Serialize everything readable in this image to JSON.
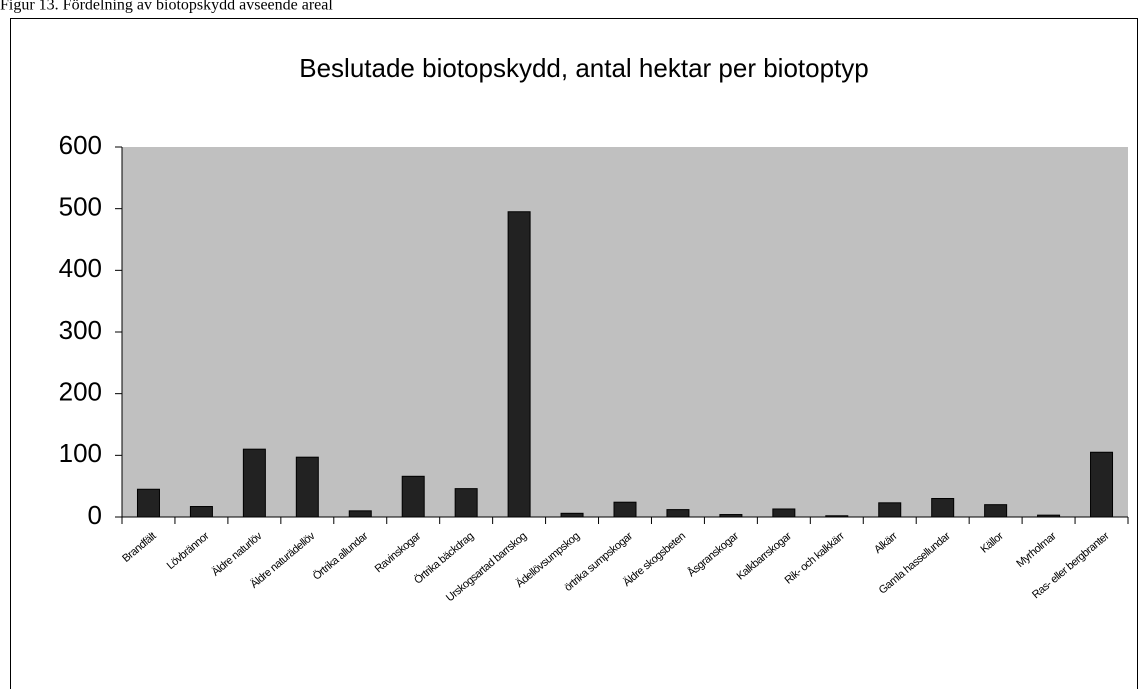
{
  "caption": "Figur 13. Fördelning av biotopskydd avseende areal",
  "chart_data": {
    "type": "bar",
    "title": "Beslutade biotopskydd, antal hektar per biotoptyp",
    "categories": [
      "Brandfält",
      "Lövbrännor",
      "Äldre naturlöv",
      "Äldre naturädellöv",
      "Örtrika allundar",
      "Ravinskogar",
      "Örtrika bäckdrag",
      "Urskogsartad barrskog",
      "Ädellövsumpskog",
      "örtrika sumpskogar",
      "Äldre skogsbeten",
      "Åsgranskogar",
      "Kalkbarrskogar",
      "Rik- och kalkkärr",
      "Alkärr",
      "Gamla hassellundar",
      "Källor",
      "Myrholmar",
      "Ras- eller bergbranter"
    ],
    "values": [
      45,
      17,
      110,
      97,
      10,
      66,
      46,
      495,
      6,
      24,
      12,
      4,
      13,
      2,
      23,
      30,
      20,
      3,
      105
    ],
    "color": "#222222",
    "background": "#c0c0c0",
    "ylim": [
      0,
      600
    ],
    "yticks": [
      0,
      100,
      200,
      300,
      400,
      500,
      600
    ]
  }
}
